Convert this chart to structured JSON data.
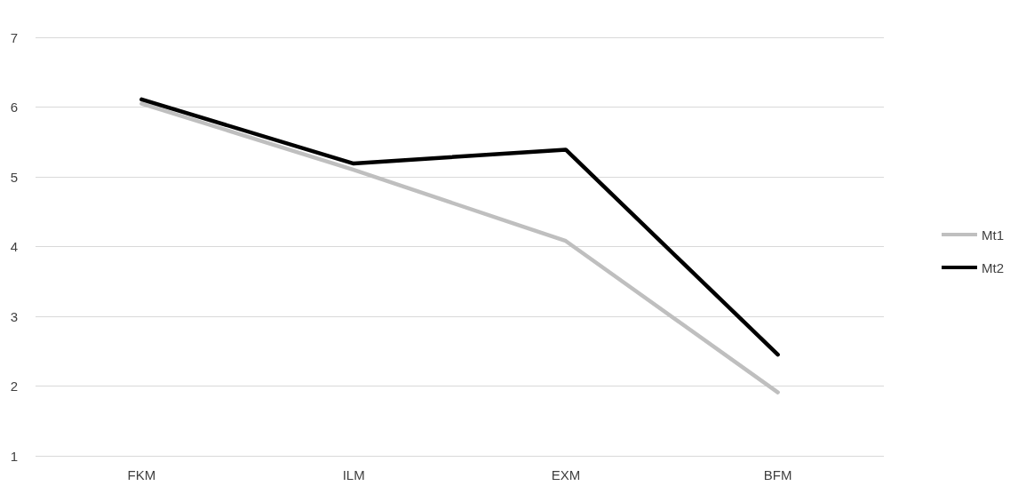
{
  "chart_data": {
    "type": "line",
    "categories": [
      "FKM",
      "ILM",
      "EXM",
      "BFM"
    ],
    "series": [
      {
        "name": "Mt1",
        "color": "#bfbfbf",
        "values": [
          6.05,
          5.1,
          4.08,
          1.91
        ]
      },
      {
        "name": "Mt2",
        "color": "#000000",
        "values": [
          6.11,
          5.19,
          5.39,
          2.45
        ]
      }
    ],
    "ylim": [
      1,
      7
    ],
    "yticks": [
      1,
      2,
      3,
      4,
      5,
      6,
      7
    ],
    "grid": "y",
    "legend": "right",
    "marker": "none",
    "line_style": "solid"
  }
}
